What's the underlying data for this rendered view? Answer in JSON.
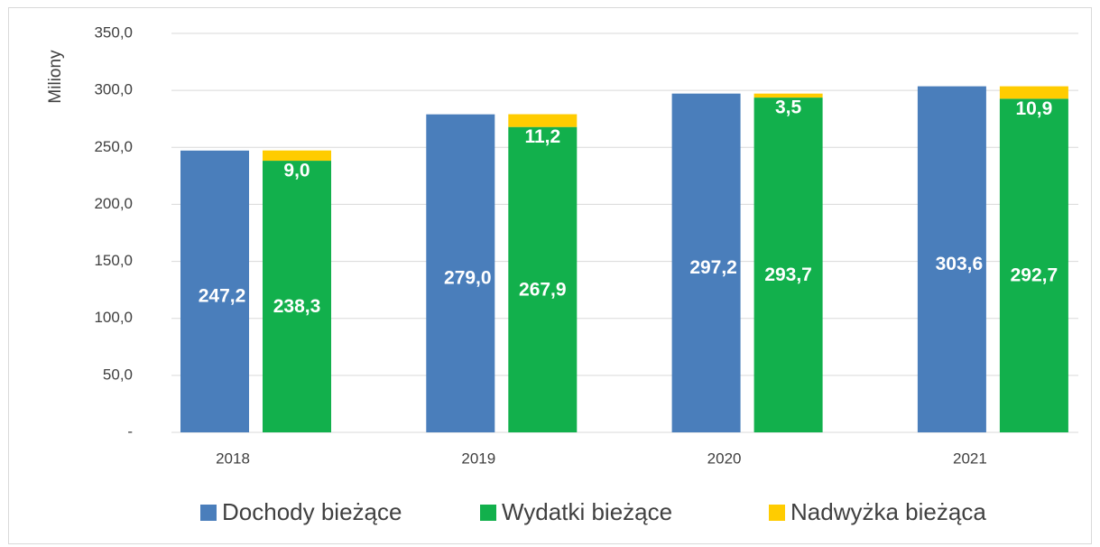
{
  "chart_data": {
    "type": "bar",
    "y_label": "Miliony",
    "categories": [
      "2018",
      "2019",
      "2020",
      "2021"
    ],
    "series": [
      {
        "name": "Dochody bieżące",
        "color": "#4a7ebb",
        "stack": 0,
        "values": [
          247.2,
          279.0,
          297.2,
          303.6
        ],
        "value_labels": [
          "247,2",
          "279,0",
          "297,2",
          "303,6"
        ]
      },
      {
        "name": "Wydatki bieżące",
        "color": "#12b04c",
        "stack": 1,
        "values": [
          238.3,
          267.9,
          293.7,
          292.7
        ],
        "value_labels": [
          "238,3",
          "267,9",
          "293,7",
          "292,7"
        ]
      },
      {
        "name": "Nadwyżka bieżąca",
        "color": "#ffcc00",
        "stack": 1,
        "values": [
          9.0,
          11.2,
          3.5,
          10.9
        ],
        "value_labels": [
          "9,0",
          "11,2",
          "3,5",
          "10,9"
        ]
      }
    ],
    "ylim": [
      0,
      350
    ],
    "yticks": [
      {
        "value": 0,
        "label": "-"
      },
      {
        "value": 50,
        "label": "50,0"
      },
      {
        "value": 100,
        "label": "100,0"
      },
      {
        "value": 150,
        "label": "150,0"
      },
      {
        "value": 200,
        "label": "200,0"
      },
      {
        "value": 250,
        "label": "250,0"
      },
      {
        "value": 300,
        "label": "300,0"
      },
      {
        "value": 350,
        "label": "350,0"
      }
    ],
    "grid": true,
    "legend": "bottom"
  }
}
